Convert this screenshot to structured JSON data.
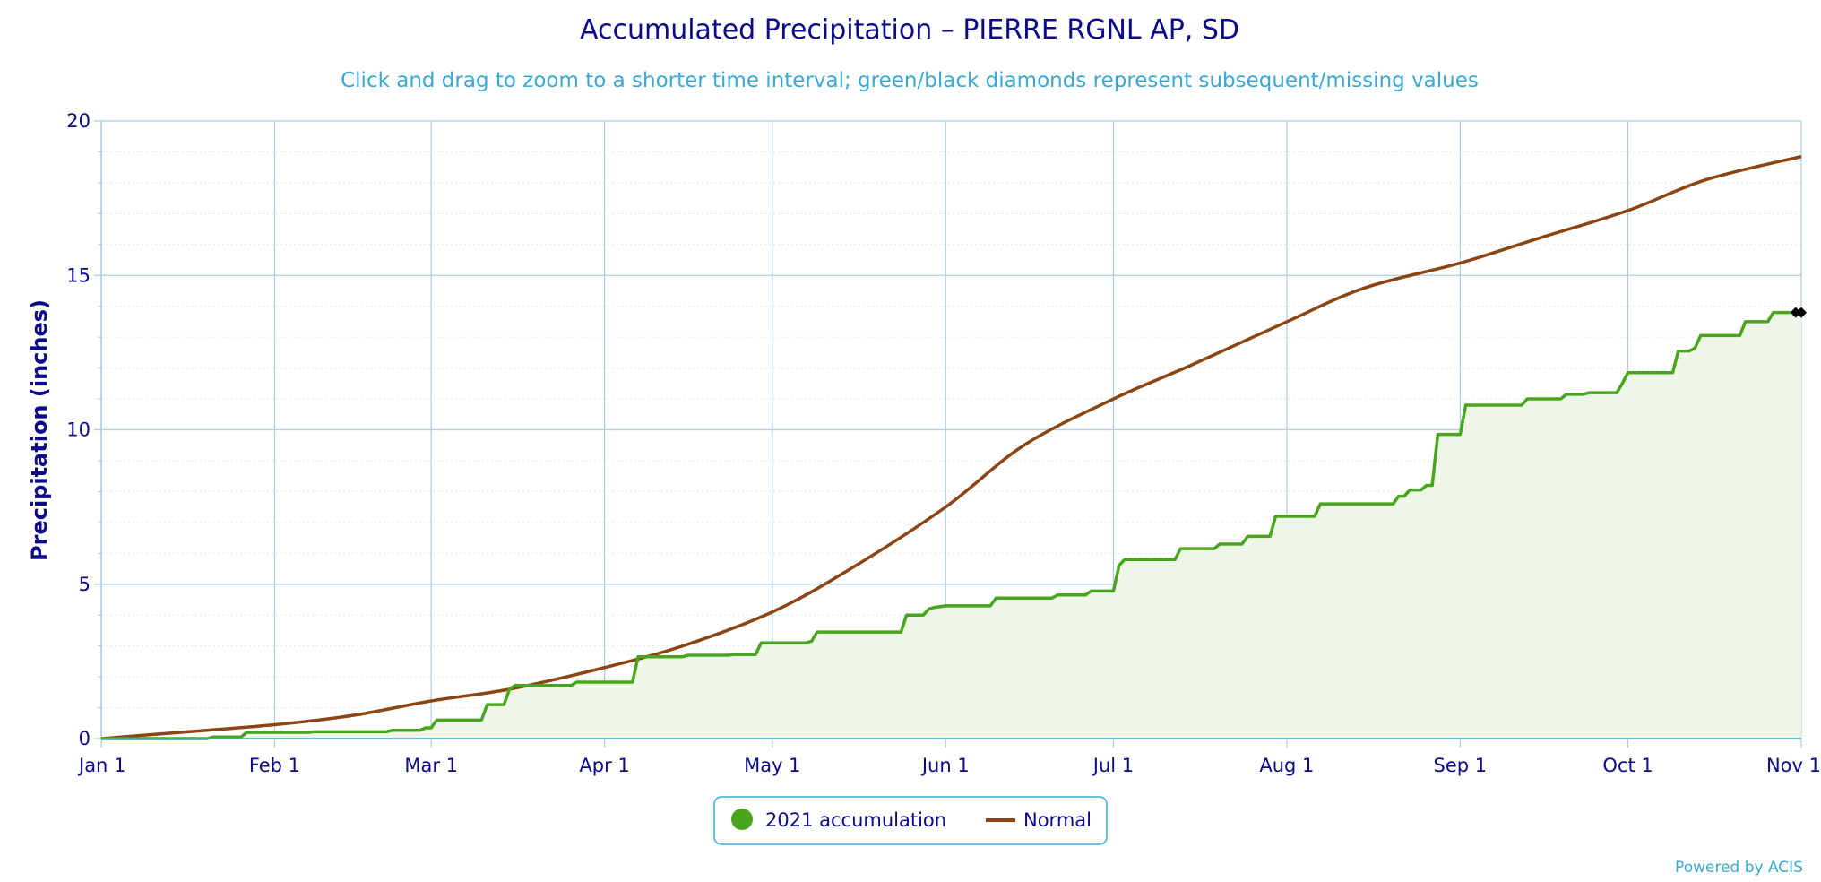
{
  "chart_data": {
    "type": "area",
    "title": "Accumulated Precipitation – PIERRE RGNL AP, SD",
    "subtitle": "Click and drag to zoom to a shorter time interval; green/black diamonds represent subsequent/missing values",
    "ylabel": "Precipitation (inches)",
    "xlabel": "",
    "ylim": [
      0,
      20
    ],
    "yticks": [
      "0",
      "5",
      "10",
      "15",
      "20"
    ],
    "xticks": [
      "Jan 1",
      "Feb 1",
      "Mar 1",
      "Apr 1",
      "May 1",
      "Jun 1",
      "Jul 1",
      "Aug 1",
      "Sep 1",
      "Oct 1",
      "Nov 1"
    ],
    "grid": true,
    "legend_position": "bottom-center",
    "credits": "Powered by ACIS",
    "colors": {
      "accumulation": "#4aa51e",
      "accumulation_fill": "#eef6e8",
      "normal": "#8b4513",
      "grid": "#a8cde3",
      "axis": "#3aa8d4"
    },
    "series": [
      {
        "name": "2021 accumulation",
        "x": [
          "2021-01-01",
          "2021-01-20",
          "2021-01-21",
          "2021-01-26",
          "2021-01-27",
          "2021-02-07",
          "2021-02-08",
          "2021-02-21",
          "2021-02-22",
          "2021-02-27",
          "2021-02-28",
          "2021-03-01",
          "2021-03-02",
          "2021-03-10",
          "2021-03-11",
          "2021-03-14",
          "2021-03-15",
          "2021-03-16",
          "2021-03-26",
          "2021-03-27",
          "2021-04-06",
          "2021-04-07",
          "2021-04-15",
          "2021-04-16",
          "2021-04-23",
          "2021-04-24",
          "2021-04-28",
          "2021-04-29",
          "2021-05-07",
          "2021-05-08",
          "2021-05-09",
          "2021-05-24",
          "2021-05-25",
          "2021-05-28",
          "2021-05-29",
          "2021-05-30",
          "2021-06-01",
          "2021-06-09",
          "2021-06-10",
          "2021-06-20",
          "2021-06-21",
          "2021-06-26",
          "2021-06-27",
          "2021-07-01",
          "2021-07-02",
          "2021-07-03",
          "2021-07-12",
          "2021-07-13",
          "2021-07-19",
          "2021-07-20",
          "2021-07-24",
          "2021-07-25",
          "2021-07-29",
          "2021-07-30",
          "2021-08-06",
          "2021-08-07",
          "2021-08-20",
          "2021-08-21",
          "2021-08-22",
          "2021-08-23",
          "2021-08-25",
          "2021-08-26",
          "2021-08-27",
          "2021-08-28",
          "2021-09-01",
          "2021-09-02",
          "2021-09-12",
          "2021-09-13",
          "2021-09-19",
          "2021-09-20",
          "2021-09-23",
          "2021-09-24",
          "2021-09-29",
          "2021-09-30",
          "2021-10-01",
          "2021-10-09",
          "2021-10-10",
          "2021-10-12",
          "2021-10-13",
          "2021-10-14",
          "2021-10-21",
          "2021-10-22",
          "2021-10-26",
          "2021-10-27",
          "2021-11-01"
        ],
        "values": [
          0,
          0,
          0.05,
          0.05,
          0.2,
          0.2,
          0.22,
          0.22,
          0.27,
          0.27,
          0.35,
          0.35,
          0.6,
          0.6,
          1.1,
          1.1,
          1.6,
          1.72,
          1.72,
          1.83,
          1.83,
          2.65,
          2.65,
          2.7,
          2.7,
          2.72,
          2.72,
          3.1,
          3.1,
          3.15,
          3.45,
          3.45,
          4.0,
          4.0,
          4.2,
          4.25,
          4.3,
          4.3,
          4.55,
          4.55,
          4.65,
          4.65,
          4.78,
          4.78,
          5.6,
          5.8,
          5.8,
          6.15,
          6.15,
          6.3,
          6.3,
          6.55,
          6.55,
          7.2,
          7.2,
          7.6,
          7.6,
          7.85,
          7.85,
          8.05,
          8.05,
          8.2,
          8.2,
          9.85,
          9.85,
          10.8,
          10.8,
          11.0,
          11.0,
          11.15,
          11.15,
          11.2,
          11.2,
          11.5,
          11.85,
          11.85,
          12.55,
          12.55,
          12.65,
          13.05,
          13.05,
          13.5,
          13.5,
          13.8,
          13.8
        ]
      },
      {
        "name": "Normal",
        "x": [
          "2021-01-01",
          "2021-01-15",
          "2021-02-01",
          "2021-02-15",
          "2021-03-01",
          "2021-03-15",
          "2021-04-01",
          "2021-04-15",
          "2021-05-01",
          "2021-05-15",
          "2021-06-01",
          "2021-06-15",
          "2021-07-01",
          "2021-07-15",
          "2021-08-01",
          "2021-08-15",
          "2021-09-01",
          "2021-09-15",
          "2021-10-01",
          "2021-10-15",
          "2021-11-01"
        ],
        "values": [
          0,
          0.2,
          0.45,
          0.75,
          1.22,
          1.6,
          2.3,
          3.0,
          4.1,
          5.5,
          7.5,
          9.5,
          11.0,
          12.1,
          13.5,
          14.6,
          15.4,
          16.2,
          17.1,
          18.1,
          18.85
        ]
      }
    ],
    "missing_markers": {
      "x": [
        "2021-10-31",
        "2021-11-01"
      ],
      "value": 13.8
    }
  }
}
